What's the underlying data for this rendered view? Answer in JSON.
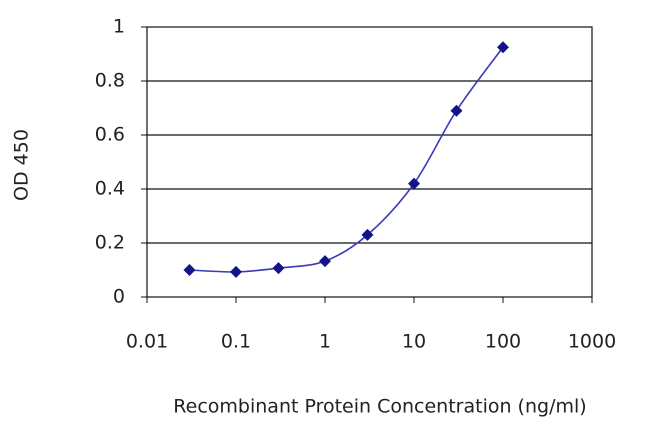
{
  "chart_data": {
    "type": "line",
    "x_label": "Recombinant Protein Concentration (ng/ml)",
    "y_label": "OD 450",
    "x": [
      0.03,
      0.1,
      0.3,
      1,
      3,
      10,
      30,
      100
    ],
    "values": [
      0.1,
      0.093,
      0.107,
      0.133,
      0.23,
      0.42,
      0.69,
      0.925
    ],
    "color": "#3a3ab5",
    "marker_color": "#14148a",
    "log_x": true,
    "xlim": [
      0.01,
      1000
    ],
    "xticks": [
      0.01,
      0.1,
      1,
      10,
      100,
      1000
    ],
    "ylim": [
      0,
      1
    ],
    "yticks": [
      0,
      0.2,
      0.4,
      0.6,
      0.8,
      1
    ],
    "grid": true
  }
}
